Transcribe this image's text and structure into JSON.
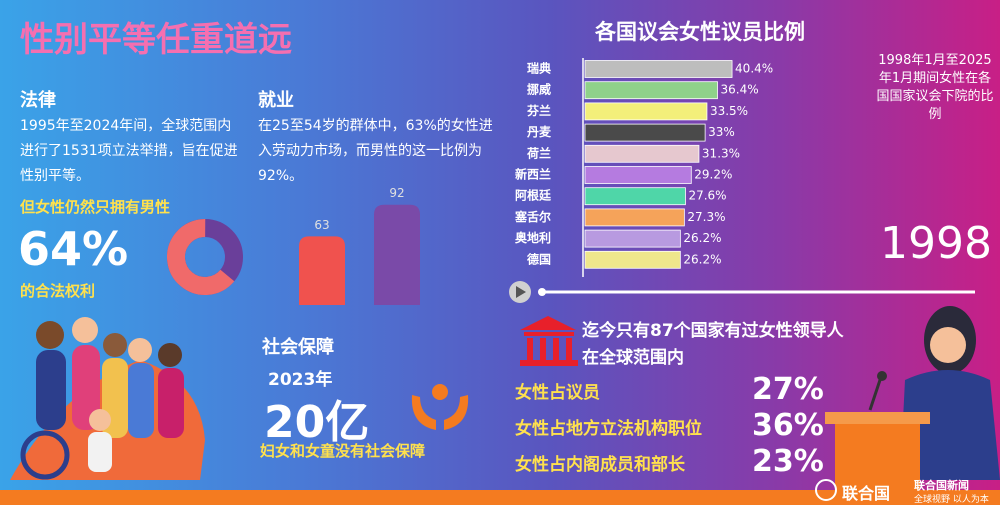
{
  "title": "性别平等任重道远",
  "law": {
    "heading": "法律",
    "text": "1995年至2024年间，全球范围内进行了1531项立法举措，旨在促进性别平等。",
    "highlight": "但女性仍然只拥有男性",
    "tail": "的合法权利"
  },
  "employment": {
    "heading": "就业",
    "text": "在25至54岁的群体中，63%的女性进入劳动力市场，而男性的这一比例为92%。"
  },
  "social": {
    "heading": "社会保障",
    "year": "2023年",
    "big": "20亿",
    "text": "妇女和女童没有社会保障"
  },
  "leaders": {
    "lines": [
      "迄今只有87个国家有过女性领导人",
      "在全球范围内"
    ],
    "rows": [
      {
        "label": "女性占议员",
        "value": "27%"
      },
      {
        "label": "女性占地方立法机构职位",
        "value": "36%"
      },
      {
        "label": "女性占内阁成员和部长",
        "value": "23%"
      }
    ]
  },
  "footer": {
    "un": "联合国",
    "news": "联合国新闻",
    "slogan": "全球视野 以人为本"
  },
  "chart_data": [
    {
      "type": "hbar",
      "title": "各国议会女性议员比例",
      "annotation": "1998年1月至2025年1月期间女性在各国国家议会下院的比例",
      "year": "1998",
      "categories": [
        "瑞典",
        "挪威",
        "芬兰",
        "丹麦",
        "荷兰",
        "新西兰",
        "阿根廷",
        "塞舌尔",
        "奥地利",
        "德国"
      ],
      "values": [
        40.4,
        36.4,
        33.5,
        33,
        31.3,
        29.2,
        27.6,
        27.3,
        26.2,
        26.2
      ],
      "value_labels": [
        "40.4%",
        "36.4%",
        "33.5%",
        "33%",
        "31.3%",
        "29.2%",
        "27.6%",
        "27.3%",
        "26.2%",
        "26.2%"
      ],
      "colors": [
        "#bdbdbd",
        "#8fd18a",
        "#f3ef7a",
        "#4a4a4a",
        "#e6c8cf",
        "#b57be0",
        "#4fd6a8",
        "#f5a35a",
        "#b89ae0",
        "#efe78c"
      ]
    },
    {
      "type": "donut",
      "values": [
        64
      ],
      "value_labels": [
        "64%"
      ],
      "color": "#f06a6a",
      "rest_color": "#6a3f9a"
    },
    {
      "type": "bar",
      "values": [
        63,
        92
      ],
      "colors": [
        "#f0524e",
        "#7a4aa8"
      ]
    }
  ]
}
